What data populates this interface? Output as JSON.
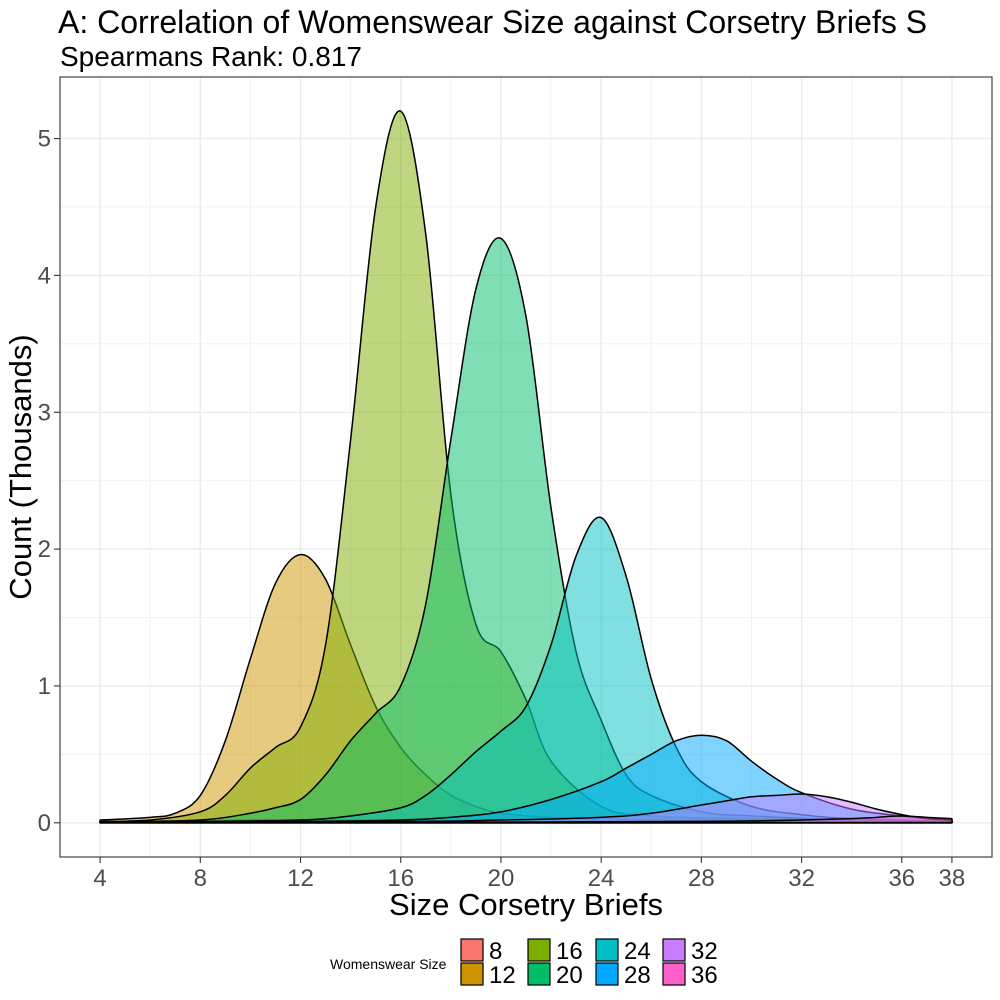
{
  "chart_data": {
    "type": "area",
    "title": "A: Correlation of Womenswear Size against Corsetry Briefs S",
    "subtitle": "Spearmans Rank: 0.817",
    "xlabel": "Size Corsetry Briefs",
    "ylabel": "Count (Thousands)",
    "x_ticks": [
      4,
      8,
      12,
      16,
      20,
      24,
      28,
      32,
      36,
      38
    ],
    "y_ticks": [
      0,
      1,
      2,
      3,
      4,
      5
    ],
    "xlim": [
      2.4,
      39.6
    ],
    "ylim": [
      -0.25,
      5.45
    ],
    "grid": true,
    "legend": {
      "title": "Womenswear Size",
      "position": "bottom",
      "entries": [
        "8",
        "12",
        "16",
        "20",
        "24",
        "28",
        "32",
        "36"
      ]
    },
    "series": [
      {
        "name": "8",
        "color": "#F8766D",
        "x": [
          4,
          6,
          8,
          10,
          12,
          14,
          16,
          20,
          24,
          28,
          32,
          36,
          38
        ],
        "y": [
          0.005,
          0.01,
          0.015,
          0.02,
          0.02,
          0.02,
          0.02,
          0.02,
          0.02,
          0.01,
          0.01,
          0.005,
          0.005
        ]
      },
      {
        "name": "12",
        "color": "#CD9600",
        "x": [
          4,
          6,
          7,
          8,
          9,
          10,
          11,
          12,
          13,
          14,
          15,
          16,
          17,
          18,
          19,
          20,
          22,
          24,
          26,
          30,
          34,
          38
        ],
        "y": [
          0.02,
          0.04,
          0.07,
          0.2,
          0.6,
          1.2,
          1.75,
          1.96,
          1.78,
          1.3,
          0.85,
          0.55,
          0.35,
          0.2,
          0.12,
          0.07,
          0.04,
          0.03,
          0.02,
          0.02,
          0.02,
          0.01
        ]
      },
      {
        "name": "16",
        "color": "#7CAE00",
        "x": [
          4,
          6,
          8,
          9,
          10,
          11,
          12,
          13,
          14,
          15,
          16,
          17,
          18,
          19,
          20,
          21,
          22,
          24,
          26,
          30,
          34,
          38
        ],
        "y": [
          0.01,
          0.02,
          0.08,
          0.2,
          0.4,
          0.55,
          0.7,
          1.3,
          2.8,
          4.5,
          5.2,
          4.3,
          2.4,
          1.45,
          1.25,
          0.9,
          0.45,
          0.12,
          0.05,
          0.03,
          0.02,
          0.01
        ]
      },
      {
        "name": "20",
        "color": "#00BE67",
        "x": [
          4,
          8,
          10,
          11,
          12,
          13,
          14,
          15,
          16,
          17,
          18,
          19,
          20,
          21,
          22,
          23,
          24,
          25,
          26,
          28,
          30,
          34,
          38
        ],
        "y": [
          0.005,
          0.02,
          0.07,
          0.11,
          0.17,
          0.35,
          0.6,
          0.8,
          1.0,
          1.6,
          2.8,
          3.9,
          4.27,
          3.7,
          2.3,
          1.25,
          0.75,
          0.35,
          0.2,
          0.08,
          0.05,
          0.02,
          0.01
        ]
      },
      {
        "name": "24",
        "color": "#00BFC4",
        "x": [
          4,
          8,
          12,
          14,
          16,
          17,
          18,
          19,
          20,
          21,
          22,
          23,
          24,
          25,
          26,
          27,
          28,
          30,
          32,
          34,
          38
        ],
        "y": [
          0.005,
          0.01,
          0.02,
          0.05,
          0.11,
          0.2,
          0.35,
          0.52,
          0.67,
          0.85,
          1.3,
          1.95,
          2.23,
          1.8,
          1.05,
          0.55,
          0.3,
          0.12,
          0.06,
          0.03,
          0.01
        ]
      },
      {
        "name": "28",
        "color": "#00A9FF",
        "x": [
          4,
          12,
          16,
          18,
          20,
          22,
          24,
          25,
          26,
          27,
          28,
          29,
          30,
          31,
          32,
          34,
          36,
          38
        ],
        "y": [
          0.005,
          0.01,
          0.02,
          0.04,
          0.08,
          0.17,
          0.3,
          0.4,
          0.5,
          0.6,
          0.64,
          0.6,
          0.45,
          0.32,
          0.22,
          0.1,
          0.05,
          0.02
        ]
      },
      {
        "name": "32",
        "color": "#C77CFF",
        "x": [
          4,
          16,
          20,
          24,
          26,
          28,
          29,
          30,
          31,
          32,
          33,
          34,
          35,
          36,
          37,
          38
        ],
        "y": [
          0.005,
          0.01,
          0.02,
          0.04,
          0.07,
          0.13,
          0.16,
          0.19,
          0.2,
          0.21,
          0.19,
          0.15,
          0.1,
          0.06,
          0.03,
          0.02
        ]
      },
      {
        "name": "36",
        "color": "#FF61CC",
        "x": [
          4,
          20,
          28,
          32,
          34,
          35,
          36,
          37,
          38
        ],
        "y": [
          0.002,
          0.005,
          0.01,
          0.02,
          0.03,
          0.04,
          0.05,
          0.04,
          0.03
        ]
      }
    ]
  }
}
